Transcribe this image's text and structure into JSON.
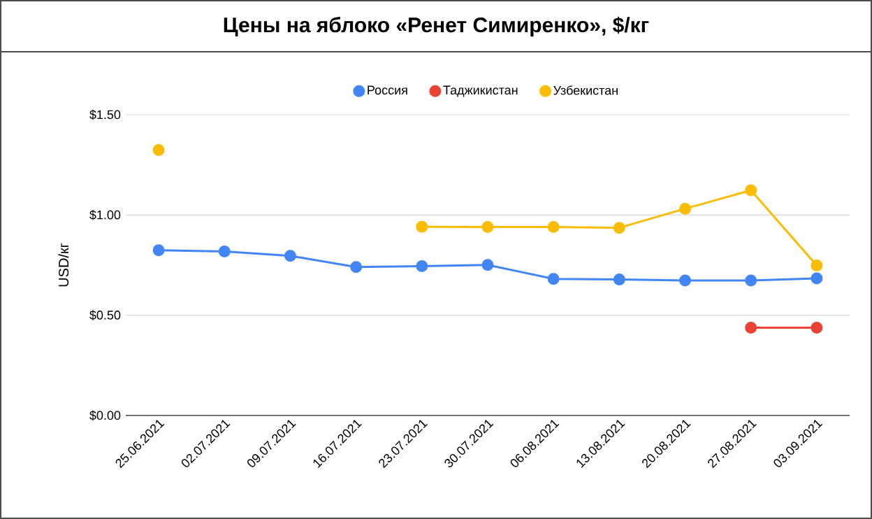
{
  "chart_data": {
    "type": "line",
    "title": "Цены на яблоко «Ренет Симиренко», $/кг",
    "ylabel": "USD/кг",
    "categories": [
      "25.06.2021",
      "02.07.2021",
      "09.07.2021",
      "16.07.2021",
      "23.07.2021",
      "30.07.2021",
      "06.08.2021",
      "13.08.2021",
      "20.08.2021",
      "27.08.2021",
      "03.09.2021"
    ],
    "series": [
      {
        "name": "Россия",
        "color": "#4285f4",
        "values": [
          0.824,
          0.818,
          0.796,
          0.74,
          0.745,
          0.751,
          0.681,
          0.678,
          0.673,
          0.673,
          0.684
        ]
      },
      {
        "name": "Таджикистан",
        "color": "#ea4335",
        "values": [
          null,
          null,
          null,
          null,
          null,
          null,
          null,
          null,
          null,
          0.438,
          0.438
        ]
      },
      {
        "name": "Узбекистан",
        "color": "#fbbc04",
        "values": [
          1.324,
          null,
          null,
          null,
          0.941,
          0.94,
          0.94,
          0.936,
          1.031,
          1.123,
          0.748
        ]
      }
    ],
    "ylim": [
      0,
      1.5
    ],
    "yticks": [
      {
        "value": 0,
        "label": "$0.00"
      },
      {
        "value": 0.5,
        "label": "$0.50"
      },
      {
        "value": 1,
        "label": "$1.00"
      },
      {
        "value": 1.5,
        "label": "$1.50"
      }
    ],
    "grid": "y",
    "legend": "top",
    "marker": "circle",
    "line_style": "solid"
  }
}
